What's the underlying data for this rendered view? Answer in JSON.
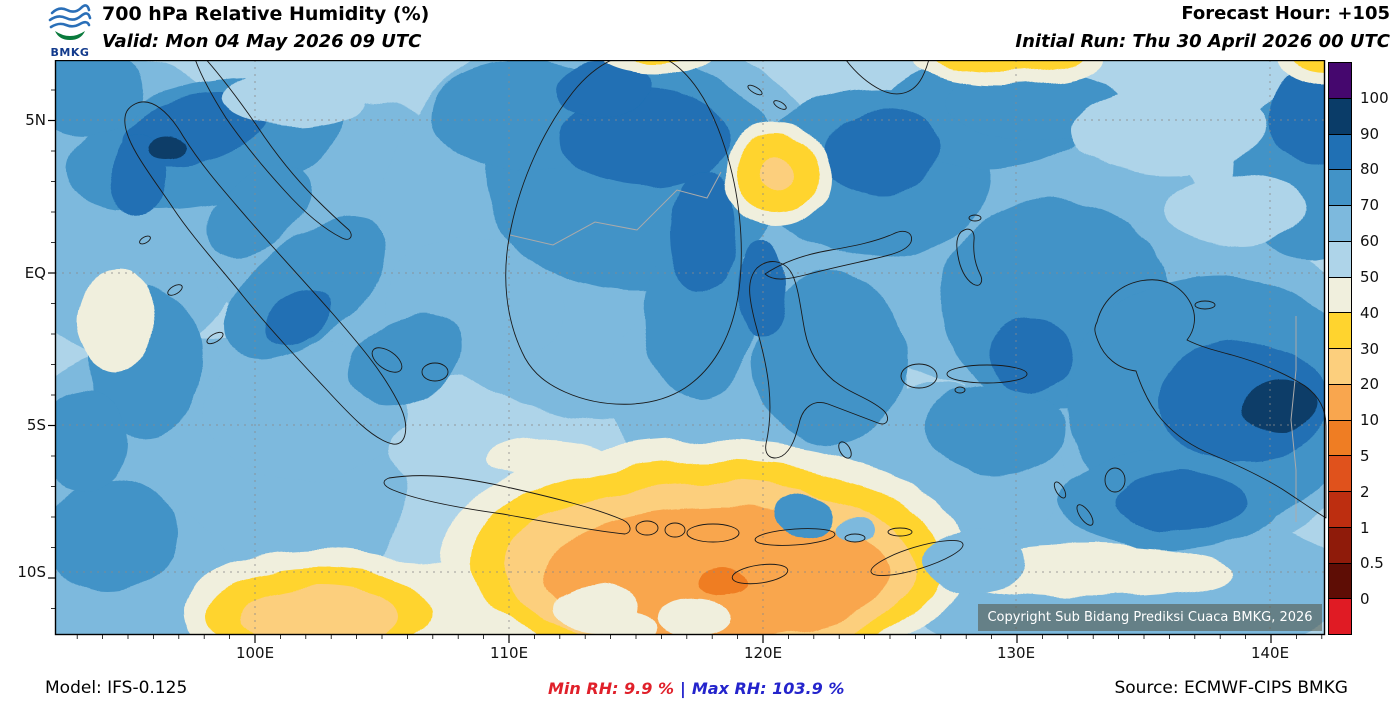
{
  "header": {
    "logo_label": "BMKG",
    "title": "700 hPa Relative Humidity (%)",
    "valid_line": "Valid: Mon 04 May 2026 09 UTC",
    "forecast_hour": "Forecast Hour: +105",
    "initial_run": "Initial Run: Thu 30 April 2026 00 UTC"
  },
  "map": {
    "lat_labels": [
      "5N",
      "EQ",
      "5S",
      "10S"
    ],
    "lon_labels": [
      "100E",
      "110E",
      "120E",
      "130E",
      "140E"
    ],
    "copyright": "Copyright Sub Bidang Prediksi Cuaca BMKG, 2026"
  },
  "legend": {
    "tick_labels": [
      "100",
      "90",
      "80",
      "70",
      "60",
      "50",
      "40",
      "30",
      "20",
      "10",
      "5",
      "2",
      "1",
      "0.5",
      "0"
    ],
    "bands": [
      {
        "name": "over-100",
        "color": "#45076e"
      },
      {
        "name": "90-100",
        "color": "#0a3c68"
      },
      {
        "name": "80-90",
        "color": "#2070b4"
      },
      {
        "name": "70-80",
        "color": "#4293c7"
      },
      {
        "name": "60-70",
        "color": "#7db9dd"
      },
      {
        "name": "50-60",
        "color": "#aed4e9"
      },
      {
        "name": "40-50",
        "color": "#f0efdd"
      },
      {
        "name": "30-40",
        "color": "#ffd42e"
      },
      {
        "name": "20-30",
        "color": "#fccf7d"
      },
      {
        "name": "10-20",
        "color": "#f9a64e"
      },
      {
        "name": "5-10",
        "color": "#ef7d23"
      },
      {
        "name": "2-5",
        "color": "#e0521c"
      },
      {
        "name": "1-2",
        "color": "#bd2e10"
      },
      {
        "name": "0.5-1",
        "color": "#8f1b0a"
      },
      {
        "name": "0-0.5",
        "color": "#5e0d05"
      },
      {
        "name": "under-0",
        "color": "#e01b24"
      }
    ]
  },
  "footer": {
    "model": "Model: IFS-0.125",
    "min_rh": "Min RH:  9.9 %",
    "separator": "|",
    "max_rh": "Max RH: 103.9 %",
    "source": "Source: ECMWF-CIPS BMKG"
  },
  "colors": {
    "min_rh": "#e0202a",
    "max_rh": "#2424cc",
    "coast": "#1a1a1a",
    "grid": "#8a8a8a",
    "frame": "#000000",
    "country_border": "#aaaaaa",
    "copyright_bg": "rgba(82,82,64,0.55)",
    "copyright_text": "#ffffff"
  }
}
